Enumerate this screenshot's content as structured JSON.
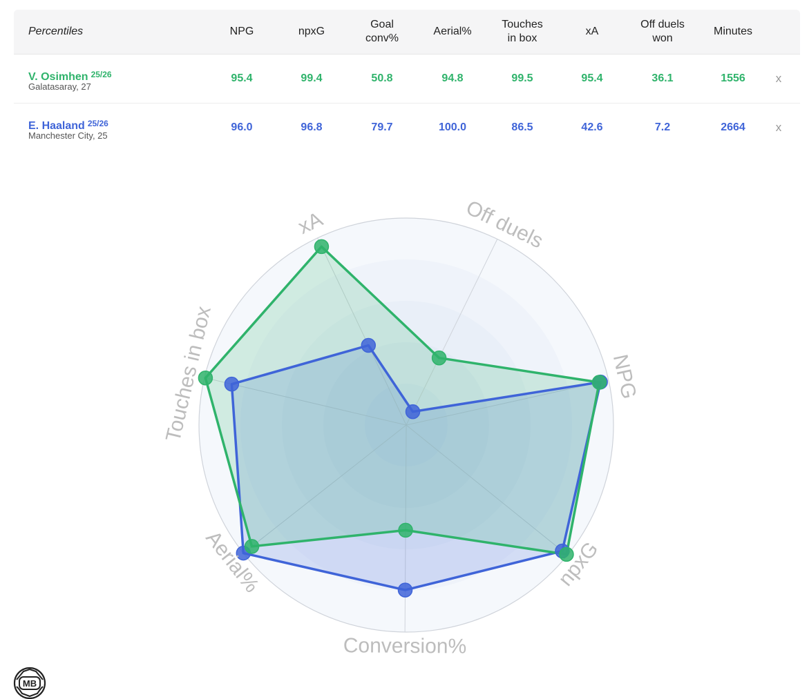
{
  "table": {
    "header_label": "Percentiles",
    "columns": [
      {
        "label": "NPG"
      },
      {
        "label": "npxG"
      },
      {
        "label": "Goal\nconv%"
      },
      {
        "label": "Aerial%"
      },
      {
        "label": "Touches\nin box"
      },
      {
        "label": "xA"
      },
      {
        "label": "Off duels\nwon"
      },
      {
        "label": "Minutes"
      }
    ],
    "players": [
      {
        "name": "V. Osimhen",
        "season": "25/26",
        "meta": "Galatasaray, 27",
        "color": "#2fb36b",
        "values": [
          "95.4",
          "99.4",
          "50.8",
          "94.8",
          "99.5",
          "95.4",
          "36.1",
          "1556"
        ],
        "remove_label": "x"
      },
      {
        "name": "E. Haaland",
        "season": "25/26",
        "meta": "Manchester City, 25",
        "color": "#3f64d8",
        "values": [
          "96.0",
          "96.8",
          "79.7",
          "100.0",
          "86.5",
          "42.6",
          "7.2",
          "2664"
        ],
        "remove_label": "x"
      }
    ]
  },
  "chart_data": {
    "type": "radar",
    "axes": [
      "NPG",
      "npxG",
      "Conversion%",
      "Aerial%",
      "Touches in box",
      "xA",
      "Off duels"
    ],
    "range": [
      0,
      100
    ],
    "series": [
      {
        "name": "V. Osimhen",
        "color": "#2fb36b",
        "values": [
          95.4,
          99.4,
          50.8,
          94.8,
          99.5,
          95.4,
          36.1
        ]
      },
      {
        "name": "E. Haaland",
        "color": "#3f64d8",
        "values": [
          96.0,
          96.8,
          79.7,
          100.0,
          86.5,
          42.6,
          7.2
        ]
      }
    ]
  },
  "logo": {
    "text": "MB"
  }
}
